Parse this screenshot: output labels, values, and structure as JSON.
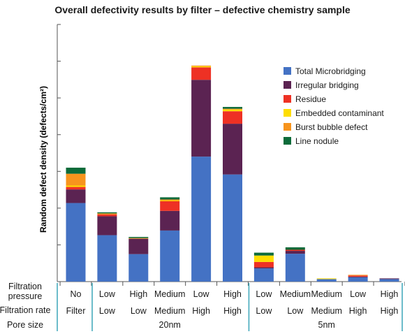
{
  "chart_data": {
    "type": "bar",
    "stacked": true,
    "title": "Overall defectivity results by filter – defective chemistry sample",
    "ylabel": "Random defect density (defects/cm²)",
    "ylim": [
      0,
      7.2
    ],
    "y_ticks_labeled": false,
    "grid": false,
    "legend_position": "right",
    "categories": [
      {
        "pressure": "No",
        "rate": "Filter"
      },
      {
        "pressure": "Low",
        "rate": "Low"
      },
      {
        "pressure": "High",
        "rate": "Low"
      },
      {
        "pressure": "Medium",
        "rate": "Medium"
      },
      {
        "pressure": "Low",
        "rate": "High"
      },
      {
        "pressure": "High",
        "rate": "High"
      },
      {
        "pressure": "Low",
        "rate": "Low"
      },
      {
        "pressure": "Medium",
        "rate": "Low"
      },
      {
        "pressure": "Medium",
        "rate": "Medium"
      },
      {
        "pressure": "Low",
        "rate": "High"
      },
      {
        "pressure": "High",
        "rate": "High"
      }
    ],
    "groups": [
      {
        "label": "",
        "start": 0,
        "end": 0
      },
      {
        "label": "20nm",
        "start": 1,
        "end": 5
      },
      {
        "label": "5nm",
        "start": 6,
        "end": 10
      }
    ],
    "series": [
      {
        "name": "Total Microbridging",
        "color": "#4472c4",
        "values": [
          2.2,
          1.3,
          0.77,
          1.43,
          3.5,
          3.0,
          0.37,
          0.78,
          0.07,
          0.12,
          0.07
        ]
      },
      {
        "name": "Irregular bridging",
        "color": "#5b2352",
        "values": [
          0.38,
          0.53,
          0.43,
          0.55,
          2.15,
          1.42,
          0.03,
          0.08,
          0.0,
          0.02,
          0.02
        ]
      },
      {
        "name": "Residue",
        "color": "#ee3124",
        "values": [
          0.07,
          0.05,
          0.0,
          0.27,
          0.35,
          0.35,
          0.15,
          0.03,
          0.0,
          0.03,
          0.0
        ]
      },
      {
        "name": "Embedded contaminant",
        "color": "#fedd00",
        "values": [
          0.04,
          0.0,
          0.0,
          0.02,
          0.03,
          0.05,
          0.18,
          0.0,
          0.02,
          0.0,
          0.0
        ]
      },
      {
        "name": "Burst bubble defect",
        "color": "#f7941d",
        "values": [
          0.33,
          0.03,
          0.02,
          0.03,
          0.02,
          0.02,
          0.0,
          0.0,
          0.0,
          0.02,
          0.0
        ]
      },
      {
        "name": "Line nodule",
        "color": "#0c6b3a",
        "values": [
          0.17,
          0.03,
          0.03,
          0.06,
          0.0,
          0.05,
          0.08,
          0.07,
          0.0,
          0.0,
          0.0
        ]
      }
    ]
  },
  "table": {
    "row_labels": [
      "Filtration pressure",
      "Filtration rate",
      "Pore size"
    ]
  },
  "colors": {
    "divider": "#3aa6b9",
    "axis": "#555555"
  }
}
